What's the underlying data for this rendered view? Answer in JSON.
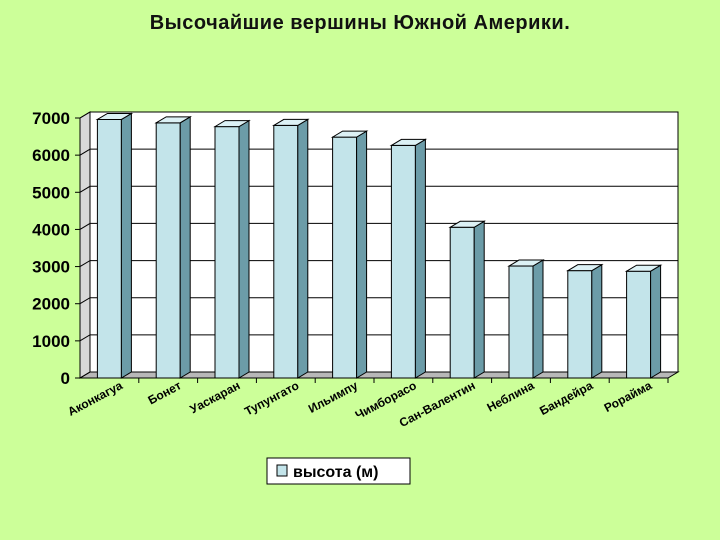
{
  "page": {
    "title": "Высочайшие вершины Южной Америки."
  },
  "chart_data": {
    "type": "bar",
    "title": "Высочайшие вершины Южной Америки.",
    "categories": [
      "Аконкагуа",
      "Бонет",
      "Уаскаран",
      "Тупунгато",
      "Ильимпу",
      "Чимборасо",
      "Сан-Валентин",
      "Неблина",
      "Бандейра",
      "Рорайма"
    ],
    "series": [
      {
        "name": "высота (м)",
        "values": [
          6960,
          6870,
          6768,
          6800,
          6485,
          6262,
          4058,
          3014,
          2890,
          2875
        ]
      }
    ],
    "yticks": [
      "0",
      "1000",
      "2000",
      "3000",
      "4000",
      "5000",
      "6000",
      "7000"
    ],
    "ylim": [
      0,
      7000
    ],
    "grid": true,
    "legend_position": "bottom-center",
    "colors": {
      "background": "#ccff99",
      "plot_area": "#ffffff",
      "bar_front": "#c3e4ea",
      "bar_side": "#6c9ca8",
      "bar_top": "#dcf1f5",
      "outline": "#000000"
    }
  }
}
